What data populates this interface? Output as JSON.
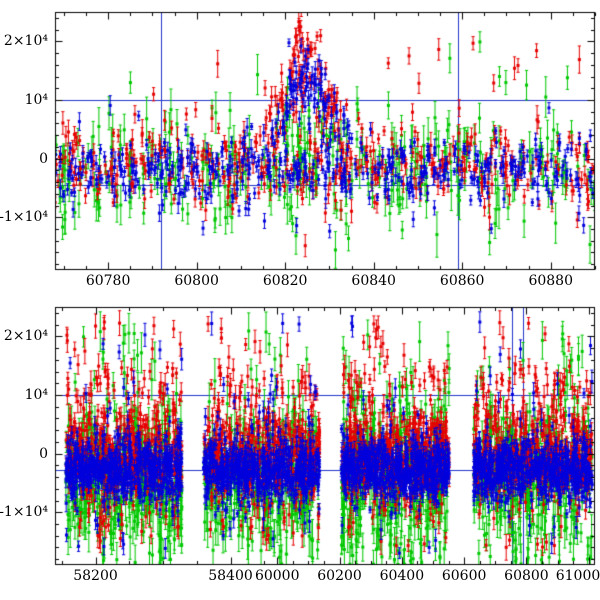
{
  "chart_data": {
    "type": "scatter",
    "title": "",
    "xlabel": "",
    "ylabel": "",
    "legend": null,
    "marker_style": "filled squares with vertical error bars",
    "layout_note": "two stacked panels; top panel is a zoom of recent epoch, bottom panel has a broken/compressed time axis",
    "colors": {
      "red": "#e60000",
      "green": "#00c800",
      "blue": "#0000dd",
      "refline": "#2233cc",
      "axis": "#000000",
      "background": "#ffffff"
    },
    "panels": [
      {
        "id": "top",
        "xlim": [
          60768,
          60890
        ],
        "ylim": [
          -19000,
          25000
        ],
        "x_minor_step": 5,
        "y_minor_step": 2000,
        "x_ticks": [
          {
            "value": 60780,
            "label": "60780"
          },
          {
            "value": 60800,
            "label": "60800"
          },
          {
            "value": 60820,
            "label": "60820"
          },
          {
            "value": 60840,
            "label": "60840"
          },
          {
            "value": 60860,
            "label": "60860"
          },
          {
            "value": 60880,
            "label": "60880"
          }
        ],
        "y_ticks": [
          {
            "value": 20000,
            "label": "2×10⁴"
          },
          {
            "value": 10000,
            "label": "10⁴"
          },
          {
            "value": 0,
            "label": "0"
          },
          {
            "value": -10000,
            "label": "-1×10⁴"
          }
        ],
        "hlines": [
          10000,
          -4500
        ],
        "vlines": [
          60792,
          60859
        ],
        "series": [
          {
            "name": "green",
            "color_key": "green",
            "components": [
              {
                "count": 290,
                "x": {
                  "dist": "uniform",
                  "min": 60768,
                  "max": 60890
                },
                "y": {
                  "dist": "normal",
                  "mean": -2000,
                  "sd": 4600
                },
                "err": [
                  1300,
                  3600
                ]
              },
              {
                "count": 26,
                "x": {
                  "dist": "uniform",
                  "min": 60768,
                  "max": 60890
                },
                "y": {
                  "dist": "uniform",
                  "min": -18000,
                  "max": 15000
                },
                "err": [
                  1500,
                  4000
                ]
              },
              {
                "count": 5,
                "x": {
                  "dist": "uniform",
                  "min": 60855,
                  "max": 60885
                },
                "y": {
                  "dist": "uniform",
                  "min": 12000,
                  "max": 22000
                },
                "err": [
                  1500,
                  3000
                ]
              },
              {
                "count": 20,
                "x": {
                  "dist": "normal",
                  "mean": 60824,
                  "sd": 6,
                  "min": 60806,
                  "max": 60842
                },
                "y": {
                  "dist": "bump",
                  "center": 60824,
                  "width": 7,
                  "amp": 9000,
                  "base": -1000,
                  "noise": 3000
                },
                "err": [
                  1300,
                  3000
                ]
              }
            ]
          },
          {
            "name": "red",
            "color_key": "red",
            "components": [
              {
                "count": 360,
                "x": {
                  "dist": "uniform",
                  "min": 60768,
                  "max": 60890
                },
                "y": {
                  "dist": "normal",
                  "mean": -1000,
                  "sd": 3300
                },
                "err": [
                  600,
                  1800
                ]
              },
              {
                "count": 110,
                "x": {
                  "dist": "normal",
                  "mean": 60824,
                  "sd": 5.5,
                  "min": 60806,
                  "max": 60842
                },
                "y": {
                  "dist": "bump",
                  "center": 60824,
                  "width": 6,
                  "amp": 21000,
                  "base": -500,
                  "noise": 2600
                },
                "err": [
                  700,
                  1800
                ]
              },
              {
                "count": 28,
                "x": {
                  "dist": "uniform",
                  "min": 60768,
                  "max": 60890
                },
                "y": {
                  "dist": "uniform",
                  "min": -15000,
                  "max": 17000
                },
                "err": [
                  800,
                  2500
                ]
              },
              {
                "count": 6,
                "x": {
                  "dist": "uniform",
                  "min": 60840,
                  "max": 60885
                },
                "y": {
                  "dist": "uniform",
                  "min": 14000,
                  "max": 21000
                },
                "err": [
                  1000,
                  2200
                ]
              }
            ]
          },
          {
            "name": "blue",
            "color_key": "blue",
            "components": [
              {
                "count": 430,
                "x": {
                  "dist": "uniform",
                  "min": 60768,
                  "max": 60890
                },
                "y": {
                  "dist": "normal",
                  "mean": -1800,
                  "sd": 2700
                },
                "err": [
                  500,
                  1500
                ]
              },
              {
                "count": 90,
                "x": {
                  "dist": "normal",
                  "mean": 60825,
                  "sd": 5,
                  "min": 60808,
                  "max": 60842
                },
                "y": {
                  "dist": "bump",
                  "center": 60825,
                  "width": 6,
                  "amp": 17500,
                  "base": -500,
                  "noise": 2200
                },
                "err": [
                  600,
                  1500
                ]
              },
              {
                "count": 22,
                "x": {
                  "dist": "uniform",
                  "min": 60768,
                  "max": 60890
                },
                "y": {
                  "dist": "uniform",
                  "min": -14000,
                  "max": 16000
                },
                "err": [
                  700,
                  1800
                ]
              },
              {
                "count": 6,
                "x": {
                  "dist": "normal",
                  "mean": 60812,
                  "sd": 1,
                  "min": 60809,
                  "max": 60815
                },
                "y": {
                  "dist": "uniform",
                  "min": -14000,
                  "max": 6000
                },
                "err": [
                  700,
                  1600
                ]
              }
            ]
          }
        ]
      },
      {
        "id": "bottom",
        "segments": [
          {
            "x0": 58140,
            "x1": 58460,
            "f0": 0.0,
            "f1": 0.4
          },
          {
            "x0": 59980,
            "x1": 61020,
            "f0": 0.4,
            "f1": 1.0
          }
        ],
        "ylim": [
          -19000,
          25000
        ],
        "x_minor_step": 50,
        "y_minor_step": 2000,
        "x_ticks": [
          {
            "value": 58200,
            "label": "58200"
          },
          {
            "value": 58400,
            "label": "58400"
          },
          {
            "value": 60000,
            "label": "60000"
          },
          {
            "value": 60200,
            "label": "60200"
          },
          {
            "value": 60400,
            "label": "60400"
          },
          {
            "value": 60600,
            "label": "60600"
          },
          {
            "value": 60800,
            "label": "60800"
          },
          {
            "value": 61000,
            "label": "61000"
          }
        ],
        "y_ticks": [
          {
            "value": 20000,
            "label": "2×10⁴"
          },
          {
            "value": 10000,
            "label": "10⁴"
          },
          {
            "value": 0,
            "label": "0"
          },
          {
            "value": -10000,
            "label": "-1×10⁴"
          }
        ],
        "hlines": [
          10000,
          -2800
        ],
        "vlines": [
          60755,
          60790
        ],
        "clusters": [
          [
            0.02,
            0.235
          ],
          [
            0.275,
            0.49
          ],
          [
            0.53,
            0.73
          ],
          [
            0.775,
            0.995
          ]
        ],
        "series": [
          {
            "name": "green",
            "color_key": "green",
            "components": [
              {
                "count": 1250,
                "x": {
                  "dist": "frac"
                },
                "y": {
                  "dist": "normal",
                  "mean": -3500,
                  "sd": 5200
                },
                "err": [
                  1400,
                  3900
                ]
              },
              {
                "count": 150,
                "x": {
                  "dist": "frac"
                },
                "y": {
                  "dist": "uniform",
                  "min": -19000,
                  "max": -9000
                },
                "err": [
                  1500,
                  4000
                ]
              },
              {
                "count": 90,
                "x": {
                  "dist": "frac"
                },
                "y": {
                  "dist": "uniform",
                  "min": 6000,
                  "max": 21000
                },
                "err": [
                  1500,
                  3500
                ]
              }
            ]
          },
          {
            "name": "red",
            "color_key": "red",
            "components": [
              {
                "count": 1700,
                "x": {
                  "dist": "frac"
                },
                "y": {
                  "dist": "normal",
                  "mean": -800,
                  "sd": 3600
                },
                "err": [
                  600,
                  2000
                ]
              },
              {
                "count": 260,
                "x": {
                  "dist": "frac"
                },
                "y": {
                  "dist": "uniform",
                  "min": 4000,
                  "max": 15000
                },
                "err": [
                  800,
                  2200
                ]
              },
              {
                "count": 40,
                "x": {
                  "dist": "frac"
                },
                "y": {
                  "dist": "uniform",
                  "min": 14000,
                  "max": 23500
                },
                "err": [
                  900,
                  2200
                ]
              },
              {
                "count": 80,
                "x": {
                  "dist": "frac"
                },
                "y": {
                  "dist": "uniform",
                  "min": -16000,
                  "max": -8000
                },
                "err": [
                  800,
                  2200
                ]
              }
            ]
          },
          {
            "name": "blue",
            "color_key": "blue",
            "components": [
              {
                "count": 2100,
                "x": {
                  "dist": "frac"
                },
                "y": {
                  "dist": "normal",
                  "mean": -2800,
                  "sd": 2700
                },
                "err": [
                  500,
                  1600
                ]
              },
              {
                "count": 120,
                "x": {
                  "dist": "frac"
                },
                "y": {
                  "dist": "uniform",
                  "min": -17000,
                  "max": 12000
                },
                "err": [
                  600,
                  2000
                ]
              },
              {
                "count": 25,
                "x": {
                  "dist": "frac"
                },
                "y": {
                  "dist": "uniform",
                  "min": 8000,
                  "max": 23000
                },
                "err": [
                  800,
                  2000
                ]
              }
            ]
          }
        ]
      }
    ]
  }
}
